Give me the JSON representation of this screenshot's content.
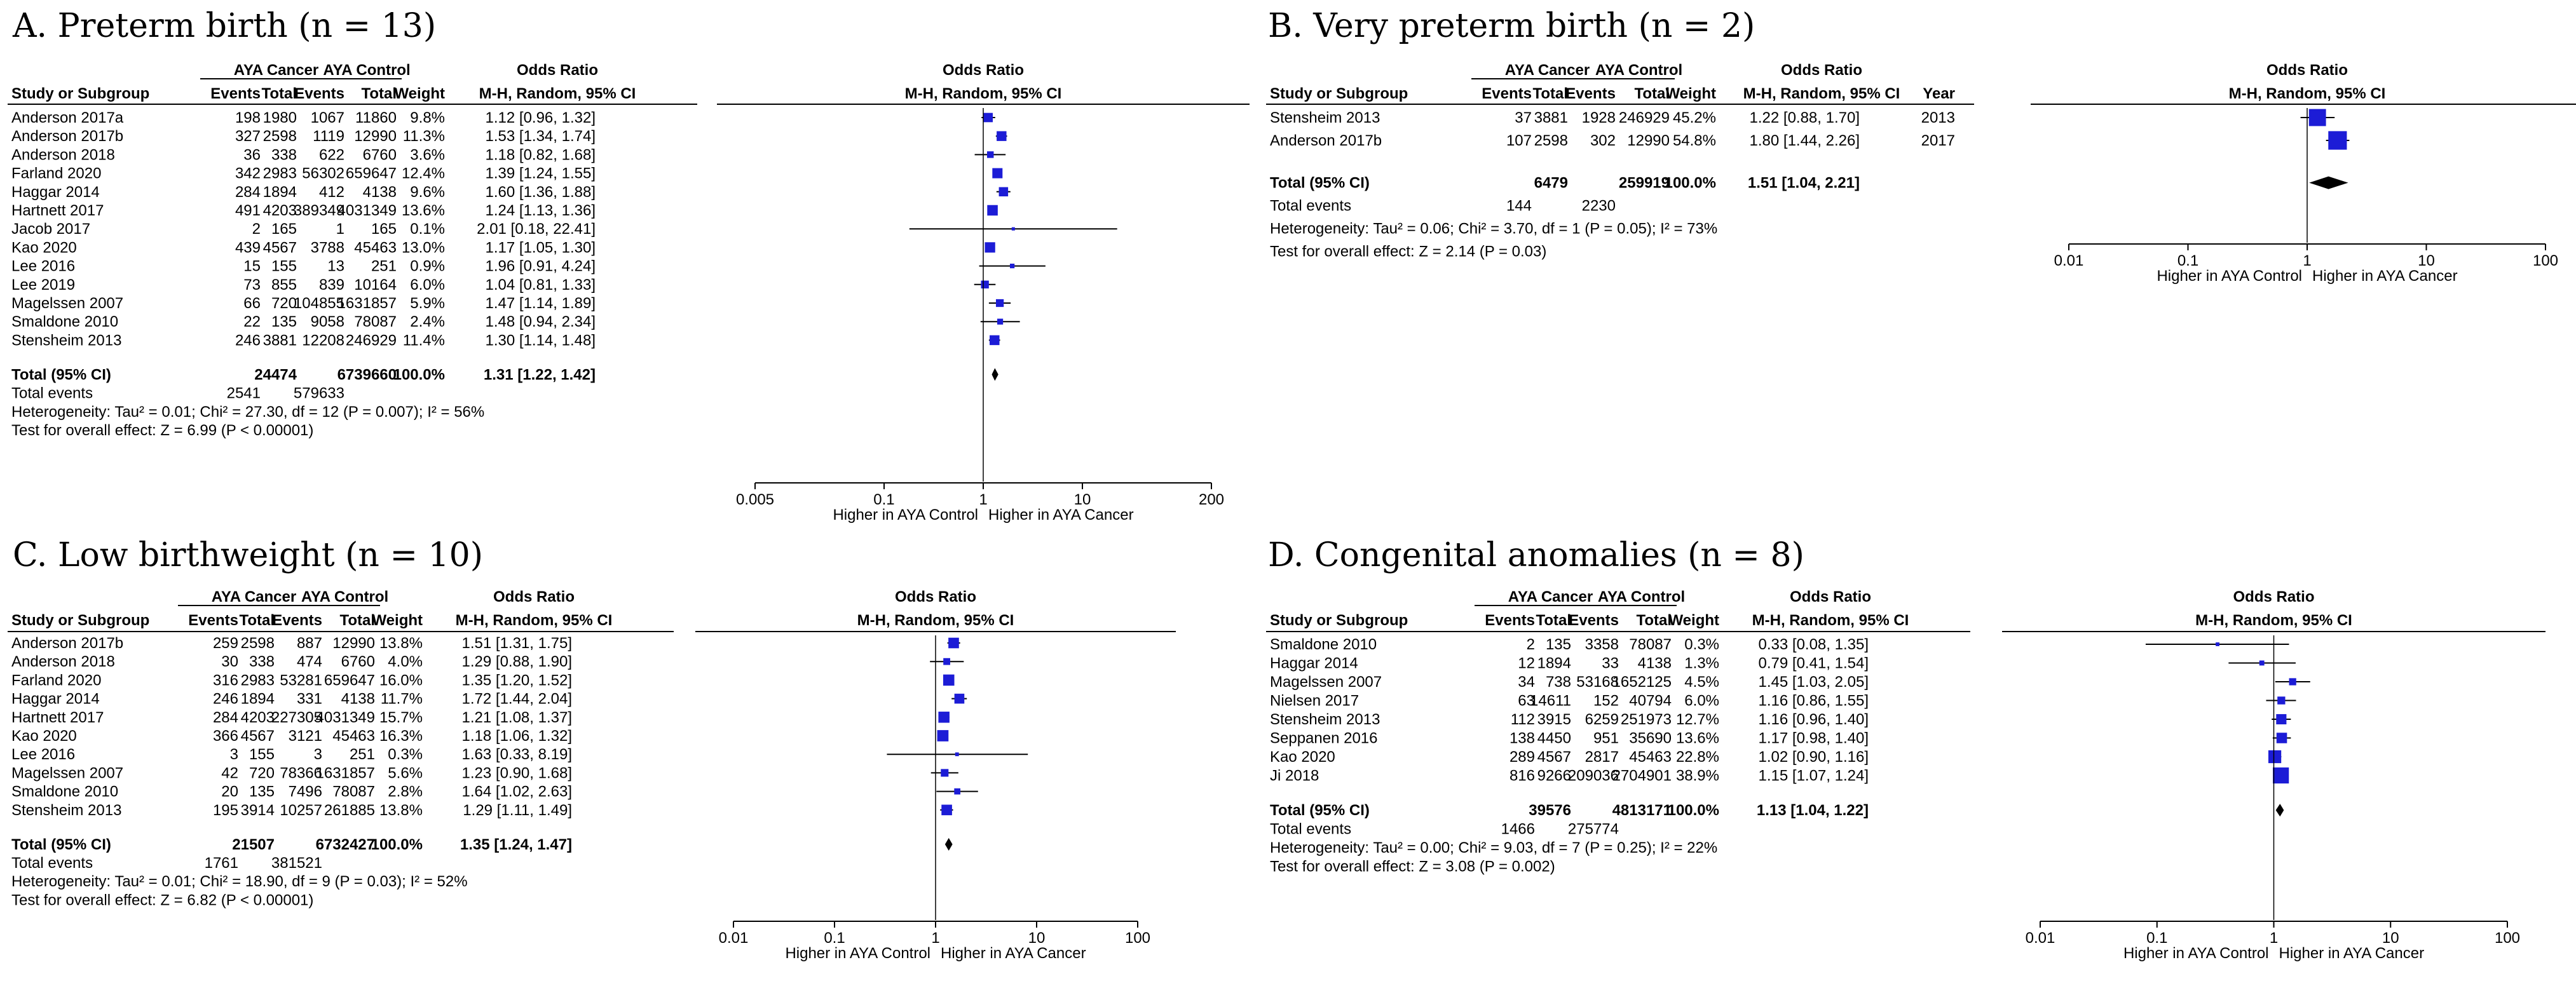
{
  "chart_data": [
    {
      "type": "forest",
      "title": "A. Preterm birth (n = 13)",
      "group1": "AYA Cancer",
      "group2": "AYA Control",
      "col_study": "Study or Subgroup",
      "col_events": "Events",
      "col_total": "Total",
      "col_weight": "Weight",
      "col_or": "Odds Ratio",
      "col_or_sub": "M-H, Random, 95% CI",
      "col_year": "",
      "rows": [
        {
          "study": "Anderson 2017a",
          "e1": "198",
          "t1": "1980",
          "e2": "1067",
          "t2": "11860",
          "weight": "9.8%",
          "ci_text": "1.12 [0.96, 1.32]",
          "year": "",
          "or": 1.12,
          "lo": 0.96,
          "hi": 1.32
        },
        {
          "study": "Anderson 2017b",
          "e1": "327",
          "t1": "2598",
          "e2": "1119",
          "t2": "12990",
          "weight": "11.3%",
          "ci_text": "1.53 [1.34, 1.74]",
          "year": "",
          "or": 1.53,
          "lo": 1.34,
          "hi": 1.74
        },
        {
          "study": "Anderson 2018",
          "e1": "36",
          "t1": "338",
          "e2": "622",
          "t2": "6760",
          "weight": "3.6%",
          "ci_text": "1.18 [0.82, 1.68]",
          "year": "",
          "or": 1.18,
          "lo": 0.82,
          "hi": 1.68
        },
        {
          "study": "Farland 2020",
          "e1": "342",
          "t1": "2983",
          "e2": "56302",
          "t2": "659647",
          "weight": "12.4%",
          "ci_text": "1.39 [1.24, 1.55]",
          "year": "",
          "or": 1.39,
          "lo": 1.24,
          "hi": 1.55
        },
        {
          "study": "Haggar 2014",
          "e1": "284",
          "t1": "1894",
          "e2": "412",
          "t2": "4138",
          "weight": "9.6%",
          "ci_text": "1.60 [1.36, 1.88]",
          "year": "",
          "or": 1.6,
          "lo": 1.36,
          "hi": 1.88
        },
        {
          "study": "Hartnett 2017",
          "e1": "491",
          "t1": "4203",
          "e2": "389349",
          "t2": "4031349",
          "weight": "13.6%",
          "ci_text": "1.24 [1.13, 1.36]",
          "year": "",
          "or": 1.24,
          "lo": 1.13,
          "hi": 1.36
        },
        {
          "study": "Jacob 2017",
          "e1": "2",
          "t1": "165",
          "e2": "1",
          "t2": "165",
          "weight": "0.1%",
          "ci_text": "2.01 [0.18, 22.41]",
          "year": "",
          "or": 2.01,
          "lo": 0.18,
          "hi": 22.41
        },
        {
          "study": "Kao 2020",
          "e1": "439",
          "t1": "4567",
          "e2": "3788",
          "t2": "45463",
          "weight": "13.0%",
          "ci_text": "1.17 [1.05, 1.30]",
          "year": "",
          "or": 1.17,
          "lo": 1.05,
          "hi": 1.3
        },
        {
          "study": "Lee 2016",
          "e1": "15",
          "t1": "155",
          "e2": "13",
          "t2": "251",
          "weight": "0.9%",
          "ci_text": "1.96 [0.91, 4.24]",
          "year": "",
          "or": 1.96,
          "lo": 0.91,
          "hi": 4.24
        },
        {
          "study": "Lee 2019",
          "e1": "73",
          "t1": "855",
          "e2": "839",
          "t2": "10164",
          "weight": "6.0%",
          "ci_text": "1.04 [0.81, 1.33]",
          "year": "",
          "or": 1.04,
          "lo": 0.81,
          "hi": 1.33
        },
        {
          "study": "Magelssen 2007",
          "e1": "66",
          "t1": "720",
          "e2": "104855",
          "t2": "1631857",
          "weight": "5.9%",
          "ci_text": "1.47 [1.14, 1.89]",
          "year": "",
          "or": 1.47,
          "lo": 1.14,
          "hi": 1.89
        },
        {
          "study": "Smaldone 2010",
          "e1": "22",
          "t1": "135",
          "e2": "9058",
          "t2": "78087",
          "weight": "2.4%",
          "ci_text": "1.48 [0.94, 2.34]",
          "year": "",
          "or": 1.48,
          "lo": 0.94,
          "hi": 2.34
        },
        {
          "study": "Stensheim 2013",
          "e1": "246",
          "t1": "3881",
          "e2": "12208",
          "t2": "246929",
          "weight": "11.4%",
          "ci_text": "1.30 [1.14, 1.48]",
          "year": "",
          "or": 1.3,
          "lo": 1.14,
          "hi": 1.48
        }
      ],
      "total": {
        "label": "Total (95% CI)",
        "t1": "24474",
        "t2": "6739660",
        "weight": "100.0%",
        "ci_text": "1.31 [1.22, 1.42]",
        "or": 1.31,
        "lo": 1.22,
        "hi": 1.42
      },
      "total_events": {
        "label": "Total events",
        "e1": "2541",
        "e2": "579633"
      },
      "heterogeneity": "Heterogeneity: Tau² = 0.01; Chi² = 27.30, df = 12 (P = 0.007); I² = 56%",
      "overall_effect": "Test for overall effect: Z = 6.99 (P < 0.00001)",
      "ticks": [
        0.005,
        0.1,
        1,
        10,
        200
      ],
      "tick_labels": [
        "0.005",
        "0.1",
        "1",
        "10",
        "200"
      ],
      "xlim": [
        0.005,
        200
      ],
      "scale": "log",
      "favours_left": "Higher in AYA Control",
      "favours_right": "Higher in AYA Cancer"
    },
    {
      "type": "forest",
      "title": "B. Very preterm birth (n = 2)",
      "group1": "AYA Cancer",
      "group2": "AYA Control",
      "col_study": "Study or Subgroup",
      "col_events": "Events",
      "col_total": "Total",
      "col_weight": "Weight",
      "col_or": "Odds Ratio",
      "col_or_sub": "M-H, Random, 95% CI",
      "col_year": "Year",
      "rows": [
        {
          "study": "Stensheim 2013",
          "e1": "37",
          "t1": "3881",
          "e2": "1928",
          "t2": "246929",
          "weight": "45.2%",
          "ci_text": "1.22 [0.88, 1.70]",
          "year": "2013",
          "or": 1.22,
          "lo": 0.88,
          "hi": 1.7
        },
        {
          "study": "Anderson 2017b",
          "e1": "107",
          "t1": "2598",
          "e2": "302",
          "t2": "12990",
          "weight": "54.8%",
          "ci_text": "1.80 [1.44, 2.26]",
          "year": "2017",
          "or": 1.8,
          "lo": 1.44,
          "hi": 2.26
        }
      ],
      "total": {
        "label": "Total (95% CI)",
        "t1": "6479",
        "t2": "259919",
        "weight": "100.0%",
        "ci_text": "1.51 [1.04, 2.21]",
        "or": 1.51,
        "lo": 1.04,
        "hi": 2.21
      },
      "total_events": {
        "label": "Total events",
        "e1": "144",
        "e2": "2230"
      },
      "heterogeneity": "Heterogeneity: Tau² = 0.06; Chi² = 3.70, df = 1 (P = 0.05); I² = 73%",
      "overall_effect": "Test for overall effect: Z = 2.14 (P = 0.03)",
      "ticks": [
        0.01,
        0.1,
        1,
        10,
        100
      ],
      "tick_labels": [
        "0.01",
        "0.1",
        "1",
        "10",
        "100"
      ],
      "xlim": [
        0.01,
        100
      ],
      "scale": "log",
      "favours_left": "Higher in AYA Control",
      "favours_right": "Higher in AYA Cancer"
    },
    {
      "type": "forest",
      "title": "C. Low birthweight (n = 10)",
      "group1": "AYA Cancer",
      "group2": "AYA Control",
      "col_study": "Study or Subgroup",
      "col_events": "Events",
      "col_total": "Total",
      "col_weight": "Weight",
      "col_or": "Odds Ratio",
      "col_or_sub": "M-H, Random, 95% CI",
      "col_year": "",
      "rows": [
        {
          "study": "Anderson 2017b",
          "e1": "259",
          "t1": "2598",
          "e2": "887",
          "t2": "12990",
          "weight": "13.8%",
          "ci_text": "1.51 [1.31, 1.75]",
          "year": "",
          "or": 1.51,
          "lo": 1.31,
          "hi": 1.75
        },
        {
          "study": "Anderson 2018",
          "e1": "30",
          "t1": "338",
          "e2": "474",
          "t2": "6760",
          "weight": "4.0%",
          "ci_text": "1.29 [0.88, 1.90]",
          "year": "",
          "or": 1.29,
          "lo": 0.88,
          "hi": 1.9
        },
        {
          "study": "Farland 2020",
          "e1": "316",
          "t1": "2983",
          "e2": "53281",
          "t2": "659647",
          "weight": "16.0%",
          "ci_text": "1.35 [1.20, 1.52]",
          "year": "",
          "or": 1.35,
          "lo": 1.2,
          "hi": 1.52
        },
        {
          "study": "Haggar 2014",
          "e1": "246",
          "t1": "1894",
          "e2": "331",
          "t2": "4138",
          "weight": "11.7%",
          "ci_text": "1.72 [1.44, 2.04]",
          "year": "",
          "or": 1.72,
          "lo": 1.44,
          "hi": 2.04
        },
        {
          "study": "Hartnett 2017",
          "e1": "284",
          "t1": "4203",
          "e2": "227305",
          "t2": "4031349",
          "weight": "15.7%",
          "ci_text": "1.21 [1.08, 1.37]",
          "year": "",
          "or": 1.21,
          "lo": 1.08,
          "hi": 1.37
        },
        {
          "study": "Kao 2020",
          "e1": "366",
          "t1": "4567",
          "e2": "3121",
          "t2": "45463",
          "weight": "16.3%",
          "ci_text": "1.18 [1.06, 1.32]",
          "year": "",
          "or": 1.18,
          "lo": 1.06,
          "hi": 1.32
        },
        {
          "study": "Lee 2016",
          "e1": "3",
          "t1": "155",
          "e2": "3",
          "t2": "251",
          "weight": "0.3%",
          "ci_text": "1.63 [0.33, 8.19]",
          "year": "",
          "or": 1.63,
          "lo": 0.33,
          "hi": 8.19
        },
        {
          "study": "Magelssen 2007",
          "e1": "42",
          "t1": "720",
          "e2": "78366",
          "t2": "1631857",
          "weight": "5.6%",
          "ci_text": "1.23 [0.90, 1.68]",
          "year": "",
          "or": 1.23,
          "lo": 0.9,
          "hi": 1.68
        },
        {
          "study": "Smaldone 2010",
          "e1": "20",
          "t1": "135",
          "e2": "7496",
          "t2": "78087",
          "weight": "2.8%",
          "ci_text": "1.64 [1.02, 2.63]",
          "year": "",
          "or": 1.64,
          "lo": 1.02,
          "hi": 2.63
        },
        {
          "study": "Stensheim 2013",
          "e1": "195",
          "t1": "3914",
          "e2": "10257",
          "t2": "261885",
          "weight": "13.8%",
          "ci_text": "1.29 [1.11, 1.49]",
          "year": "",
          "or": 1.29,
          "lo": 1.11,
          "hi": 1.49
        }
      ],
      "total": {
        "label": "Total (95% CI)",
        "t1": "21507",
        "t2": "6732427",
        "weight": "100.0%",
        "ci_text": "1.35 [1.24, 1.47]",
        "or": 1.35,
        "lo": 1.24,
        "hi": 1.47
      },
      "total_events": {
        "label": "Total events",
        "e1": "1761",
        "e2": "381521"
      },
      "heterogeneity": "Heterogeneity: Tau² = 0.01; Chi² = 18.90, df = 9 (P = 0.03); I² = 52%",
      "overall_effect": "Test for overall effect: Z = 6.82 (P < 0.00001)",
      "ticks": [
        0.01,
        0.1,
        1,
        10,
        100
      ],
      "tick_labels": [
        "0.01",
        "0.1",
        "1",
        "10",
        "100"
      ],
      "xlim": [
        0.01,
        100
      ],
      "scale": "log",
      "favours_left": "Higher in AYA Control",
      "favours_right": "Higher in AYA Cancer"
    },
    {
      "type": "forest",
      "title": "D. Congenital anomalies (n = 8)",
      "group1": "AYA Cancer",
      "group2": "AYA Control",
      "col_study": "Study or Subgroup",
      "col_events": "Events",
      "col_total": "Total",
      "col_weight": "Weight",
      "col_or": "Odds Ratio",
      "col_or_sub": "M-H, Random, 95% CI",
      "col_year": "",
      "rows": [
        {
          "study": "Smaldone 2010",
          "e1": "2",
          "t1": "135",
          "e2": "3358",
          "t2": "78087",
          "weight": "0.3%",
          "ci_text": "0.33 [0.08, 1.35]",
          "year": "",
          "or": 0.33,
          "lo": 0.08,
          "hi": 1.35
        },
        {
          "study": "Haggar 2014",
          "e1": "12",
          "t1": "1894",
          "e2": "33",
          "t2": "4138",
          "weight": "1.3%",
          "ci_text": "0.79 [0.41, 1.54]",
          "year": "",
          "or": 0.79,
          "lo": 0.41,
          "hi": 1.54
        },
        {
          "study": "Magelssen 2007",
          "e1": "34",
          "t1": "738",
          "e2": "53168",
          "t2": "1652125",
          "weight": "4.5%",
          "ci_text": "1.45 [1.03, 2.05]",
          "year": "",
          "or": 1.45,
          "lo": 1.03,
          "hi": 2.05
        },
        {
          "study": "Nielsen 2017",
          "e1": "63",
          "t1": "14611",
          "e2": "152",
          "t2": "40794",
          "weight": "6.0%",
          "ci_text": "1.16 [0.86, 1.55]",
          "year": "",
          "or": 1.16,
          "lo": 0.86,
          "hi": 1.55
        },
        {
          "study": "Stensheim 2013",
          "e1": "112",
          "t1": "3915",
          "e2": "6259",
          "t2": "251973",
          "weight": "12.7%",
          "ci_text": "1.16 [0.96, 1.40]",
          "year": "",
          "or": 1.16,
          "lo": 0.96,
          "hi": 1.4
        },
        {
          "study": "Seppanen 2016",
          "e1": "138",
          "t1": "4450",
          "e2": "951",
          "t2": "35690",
          "weight": "13.6%",
          "ci_text": "1.17 [0.98, 1.40]",
          "year": "",
          "or": 1.17,
          "lo": 0.98,
          "hi": 1.4
        },
        {
          "study": "Kao 2020",
          "e1": "289",
          "t1": "4567",
          "e2": "2817",
          "t2": "45463",
          "weight": "22.8%",
          "ci_text": "1.02 [0.90, 1.16]",
          "year": "",
          "or": 1.02,
          "lo": 0.9,
          "hi": 1.16
        },
        {
          "study": "Ji 2018",
          "e1": "816",
          "t1": "9266",
          "e2": "209036",
          "t2": "2704901",
          "weight": "38.9%",
          "ci_text": "1.15 [1.07, 1.24]",
          "year": "",
          "or": 1.15,
          "lo": 1.07,
          "hi": 1.24
        }
      ],
      "total": {
        "label": "Total (95% CI)",
        "t1": "39576",
        "t2": "4813171",
        "weight": "100.0%",
        "ci_text": "1.13 [1.04, 1.22]",
        "or": 1.13,
        "lo": 1.04,
        "hi": 1.22
      },
      "total_events": {
        "label": "Total events",
        "e1": "1466",
        "e2": "275774"
      },
      "heterogeneity": "Heterogeneity: Tau² = 0.00; Chi² = 9.03, df = 7 (P = 0.25); I² = 22%",
      "overall_effect": "Test for overall effect: Z = 3.08 (P = 0.002)",
      "ticks": [
        0.01,
        0.1,
        1,
        10,
        100
      ],
      "tick_labels": [
        "0.01",
        "0.1",
        "1",
        "10",
        "100"
      ],
      "xlim": [
        0.01,
        100
      ],
      "scale": "log",
      "favours_left": "Higher in AYA Control",
      "favours_right": "Higher in AYA Cancer"
    }
  ],
  "colors": {
    "marker": "#1c1cd6",
    "line": "#000000",
    "text": "#000000"
  }
}
